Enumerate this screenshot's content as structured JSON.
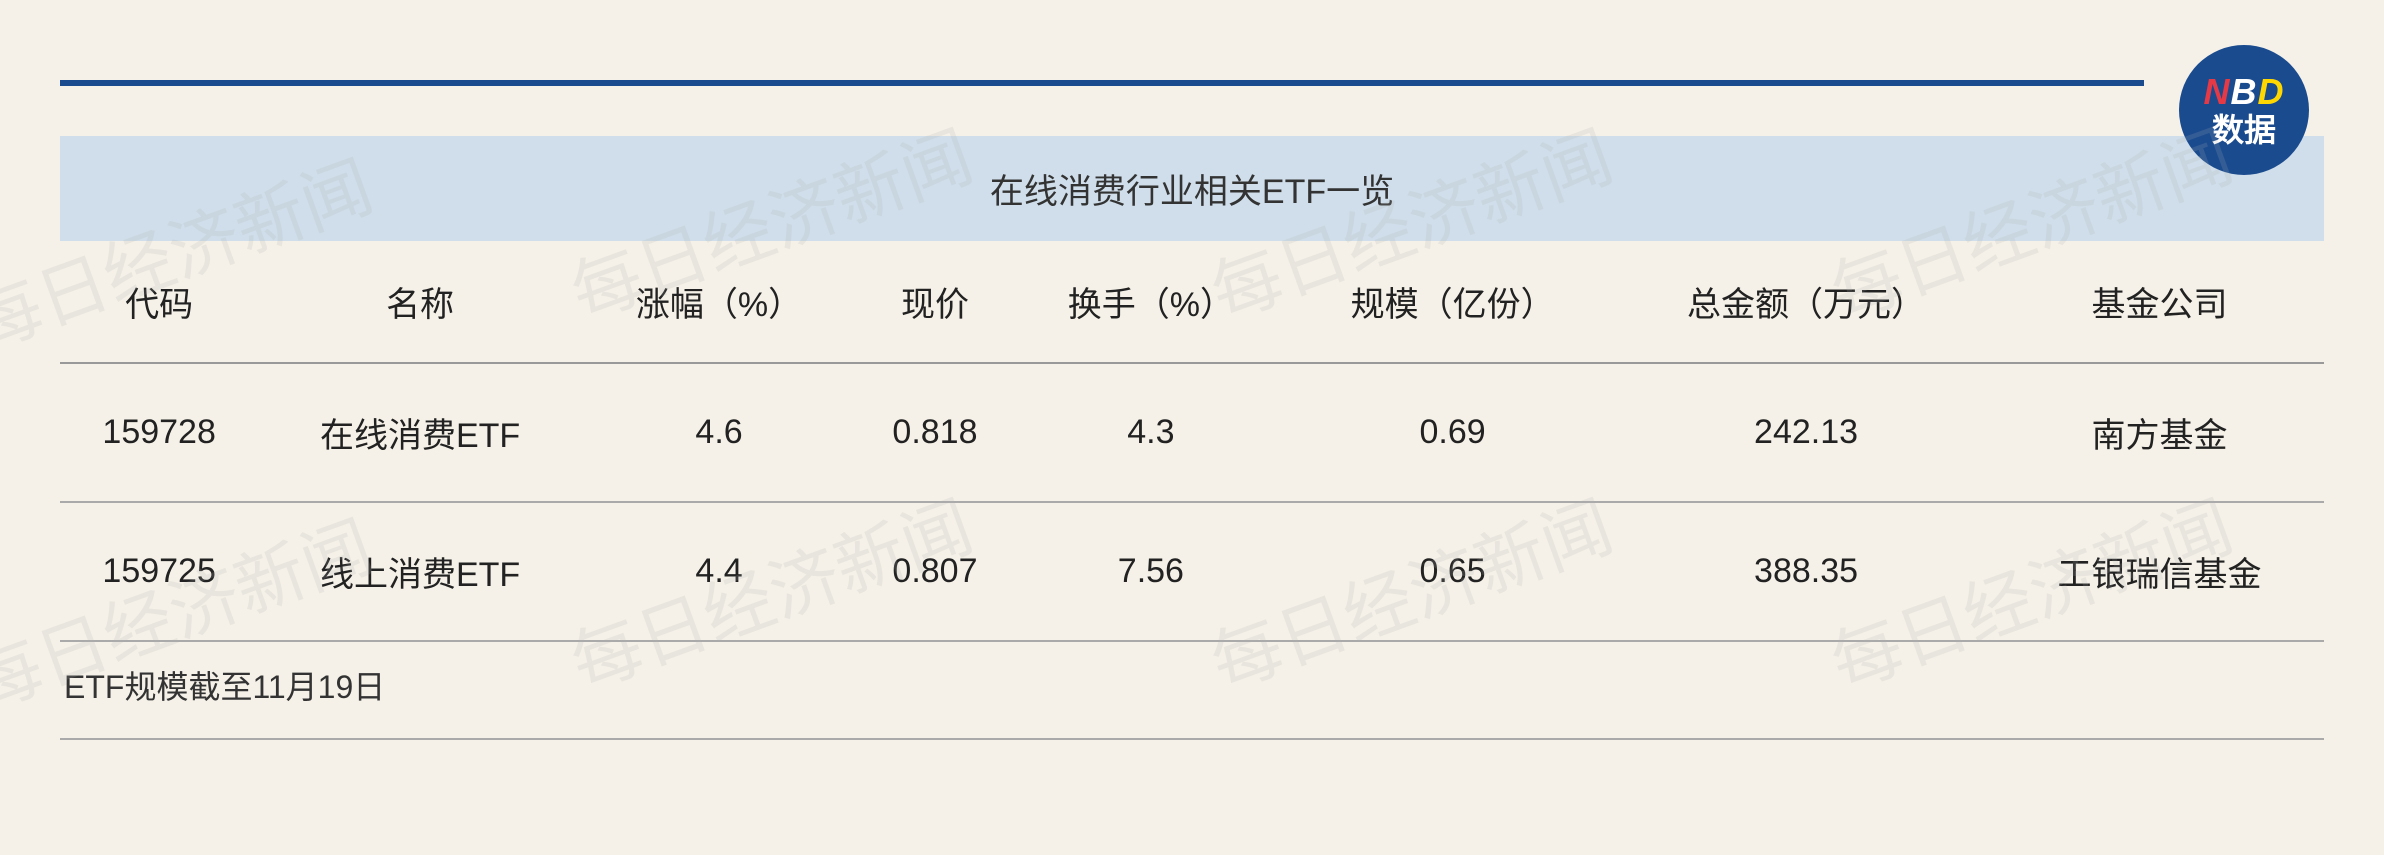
{
  "badge": {
    "line1_n": "N",
    "line1_b": "B",
    "line1_d": "D",
    "line2": "数据"
  },
  "watermark_text": "每日经济新闻",
  "table": {
    "title": "在线消费行业相关ETF一览",
    "columns": [
      "代码",
      "名称",
      "涨幅（%）",
      "现价",
      "换手（%）",
      "规模（亿份）",
      "总金额（万元）",
      "基金公司"
    ],
    "rows": [
      [
        "159728",
        "在线消费ETF",
        "4.6",
        "0.818",
        "4.3",
        "0.69",
        "242.13",
        "南方基金"
      ],
      [
        "159725",
        "线上消费ETF",
        "4.4",
        "0.807",
        "7.56",
        "0.65",
        "388.35",
        "工银瑞信基金"
      ]
    ],
    "footnote": "ETF规模截至11月19日",
    "column_widths_pct": [
      10,
      14,
      11,
      9,
      12,
      13,
      15,
      16
    ],
    "title_bg_color": "#cfdeea",
    "border_color": "#999999",
    "rule_color": "#1a4b8f",
    "bg_color": "#f5f1e8",
    "text_color": "#222222",
    "title_fontsize": 34,
    "header_fontsize": 34,
    "cell_fontsize": 34,
    "footnote_fontsize": 32
  }
}
